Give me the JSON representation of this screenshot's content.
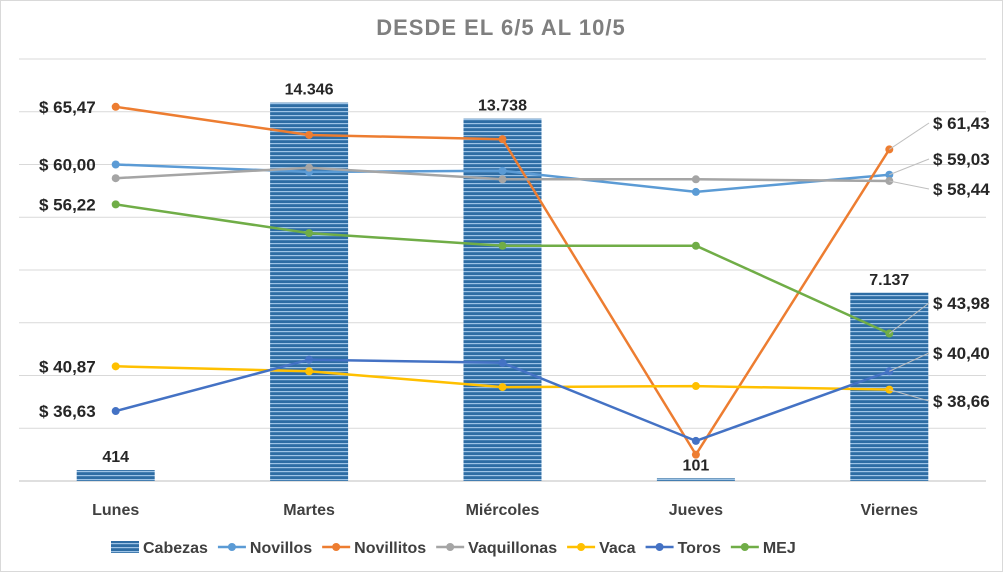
{
  "chart_data": {
    "type": "bar+line",
    "title": "DESDE EL 6/5 AL 10/5",
    "categories": [
      "Lunes",
      "Martes",
      "Miércoles",
      "Jueves",
      "Viernes"
    ],
    "bar_series": {
      "name": "Cabezas",
      "values": [
        414,
        14346,
        13738,
        101,
        7137
      ],
      "labels": [
        "414",
        "14.346",
        "13.738",
        "101",
        "7.137"
      ],
      "color": "#2e6da4"
    },
    "ylim_bars": [
      0,
      16000
    ],
    "ylim_prices": [
      30,
      70
    ],
    "line_series": [
      {
        "name": "Novillos",
        "color": "#5b9bd5",
        "values": [
          60.0,
          59.3,
          59.4,
          57.4,
          59.03
        ]
      },
      {
        "name": "Novillitos",
        "color": "#ed7d31",
        "values": [
          65.47,
          62.8,
          62.4,
          32.5,
          61.43
        ]
      },
      {
        "name": "Vaquillonas",
        "color": "#a5a5a5",
        "values": [
          58.7,
          59.7,
          58.6,
          58.6,
          58.44
        ]
      },
      {
        "name": "Vaca",
        "color": "#ffc000",
        "values": [
          40.87,
          40.4,
          38.9,
          39.0,
          38.66
        ]
      },
      {
        "name": "Toros",
        "color": "#4472c4",
        "values": [
          36.63,
          41.5,
          41.2,
          33.8,
          40.4
        ]
      },
      {
        "name": "MEJ",
        "color": "#70ad47",
        "values": [
          56.22,
          53.5,
          52.3,
          52.3,
          43.98
        ]
      }
    ],
    "left_labels": [
      {
        "series": "Novillitos",
        "text": "$ 65,47"
      },
      {
        "series": "Novillos",
        "text": "$ 60,00"
      },
      {
        "series": "MEJ",
        "text": "$ 56,22"
      },
      {
        "series": "Vaca",
        "text": "$ 40,87"
      },
      {
        "series": "Toros",
        "text": "$ 36,63"
      }
    ],
    "right_labels": [
      {
        "series": "Novillitos",
        "text": "$ 61,43"
      },
      {
        "series": "Novillos",
        "text": "$ 59,03"
      },
      {
        "series": "Vaquillonas",
        "text": "$ 58,44"
      },
      {
        "series": "MEJ",
        "text": "$ 43,98"
      },
      {
        "series": "Toros",
        "text": "$ 40,40"
      },
      {
        "series": "Vaca",
        "text": "$ 38,66"
      }
    ],
    "grid": true,
    "legend_position": "bottom"
  }
}
